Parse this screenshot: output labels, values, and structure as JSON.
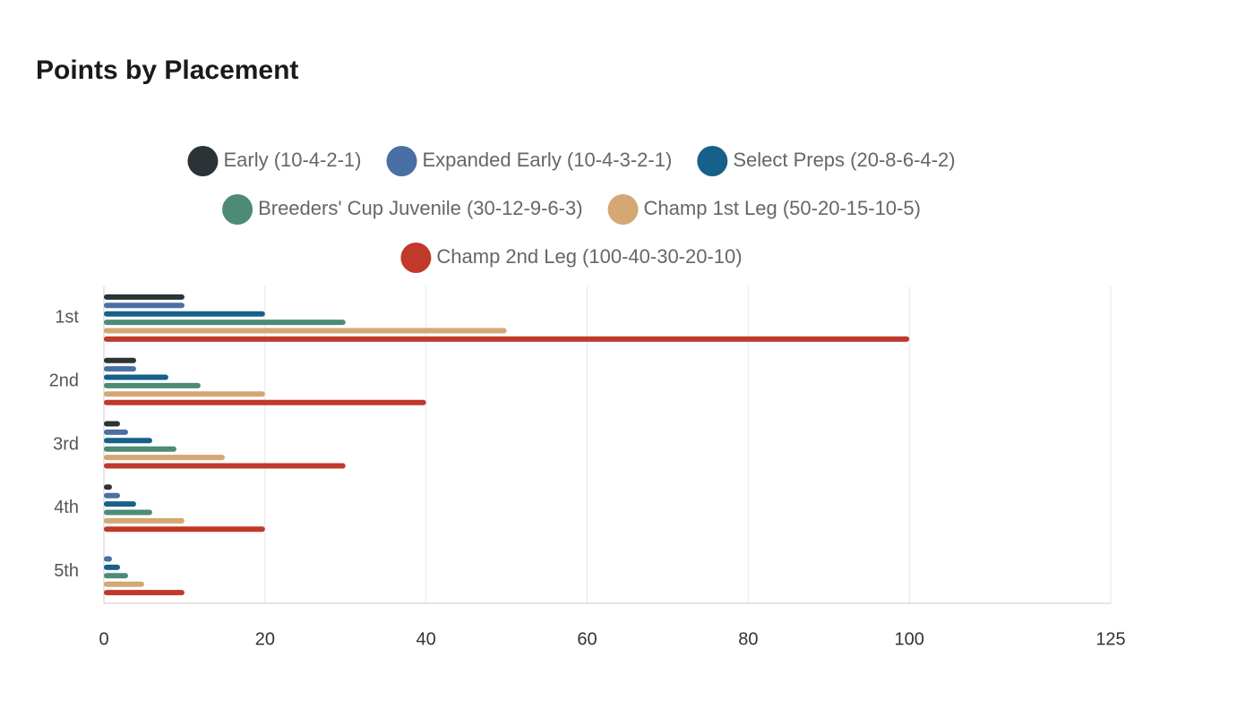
{
  "chart_data": {
    "type": "hbar",
    "title": "Points by Placement",
    "categories": [
      "1st",
      "2nd",
      "3rd",
      "4th",
      "5th"
    ],
    "series": [
      {
        "name": "Early (10-4-2-1)",
        "color": "#2b3336",
        "values": [
          10,
          4,
          2,
          1,
          null
        ]
      },
      {
        "name": "Expanded Early (10-4-3-2-1)",
        "color": "#4a6fa5",
        "values": [
          10,
          4,
          3,
          2,
          1
        ]
      },
      {
        "name": "Select Preps (20-8-6-4-2)",
        "color": "#17608a",
        "values": [
          20,
          8,
          6,
          4,
          2
        ]
      },
      {
        "name": "Breeders' Cup Juvenile (30-12-9-6-3)",
        "color": "#4d8b78",
        "values": [
          30,
          12,
          9,
          6,
          3
        ]
      },
      {
        "name": "Champ 1st Leg (50-20-15-10-5)",
        "color": "#d4a774",
        "values": [
          50,
          20,
          15,
          10,
          5
        ]
      },
      {
        "name": "Champ 2nd Leg (100-40-30-20-10)",
        "color": "#c0392b",
        "values": [
          100,
          40,
          30,
          20,
          10
        ]
      }
    ],
    "xlim": [
      0,
      125
    ],
    "xticks": [
      0,
      20,
      40,
      60,
      80,
      100,
      125
    ],
    "grid": true
  }
}
